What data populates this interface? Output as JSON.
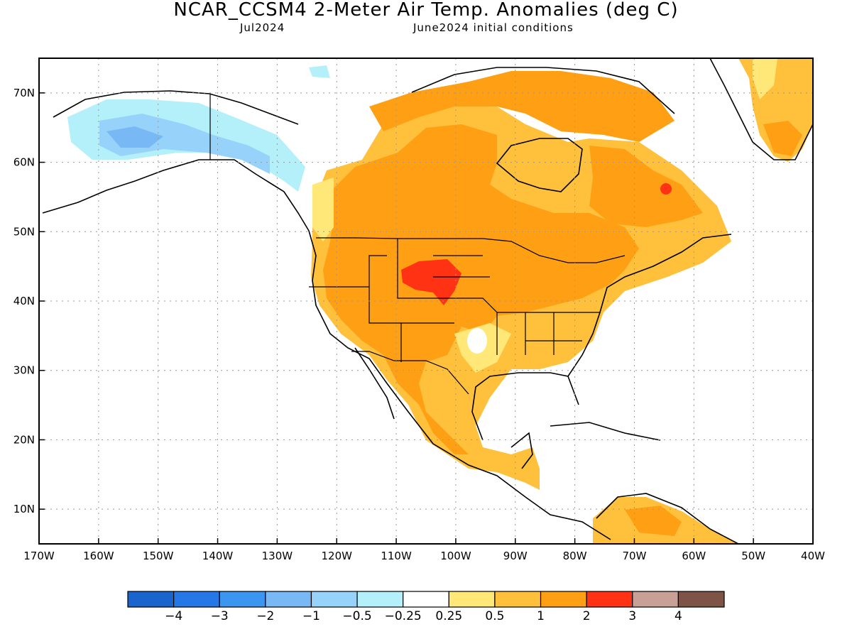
{
  "header": {
    "title": "NCAR_CCSM4 2-Meter Air Temp. Anomalies (deg C)",
    "valid_month": "Jul2024",
    "init": "June2024 initial conditions"
  },
  "axes": {
    "lon_labels": [
      "170W",
      "160W",
      "150W",
      "140W",
      "130W",
      "120W",
      "110W",
      "100W",
      "90W",
      "80W",
      "70W",
      "60W",
      "50W",
      "40W"
    ],
    "lat_labels": [
      "10N",
      "20N",
      "30N",
      "40N",
      "50N",
      "60N",
      "70N"
    ],
    "lon_range": [
      -170,
      -40
    ],
    "lat_range": [
      5,
      75
    ]
  },
  "colorbar": {
    "colors": [
      "#1964cd",
      "#2678e6",
      "#3c96f0",
      "#78b9f5",
      "#96d2fa",
      "#b4f0fa",
      "#ffffff",
      "#ffe878",
      "#ffc03c",
      "#ffa014",
      "#ff3214",
      "#c8a096",
      "#7d5446"
    ],
    "labels": [
      "−4",
      "−3",
      "−2",
      "−1",
      "−0.5",
      "−0.25",
      "0.25",
      "0.5",
      "1",
      "2",
      "3",
      "4"
    ]
  }
}
